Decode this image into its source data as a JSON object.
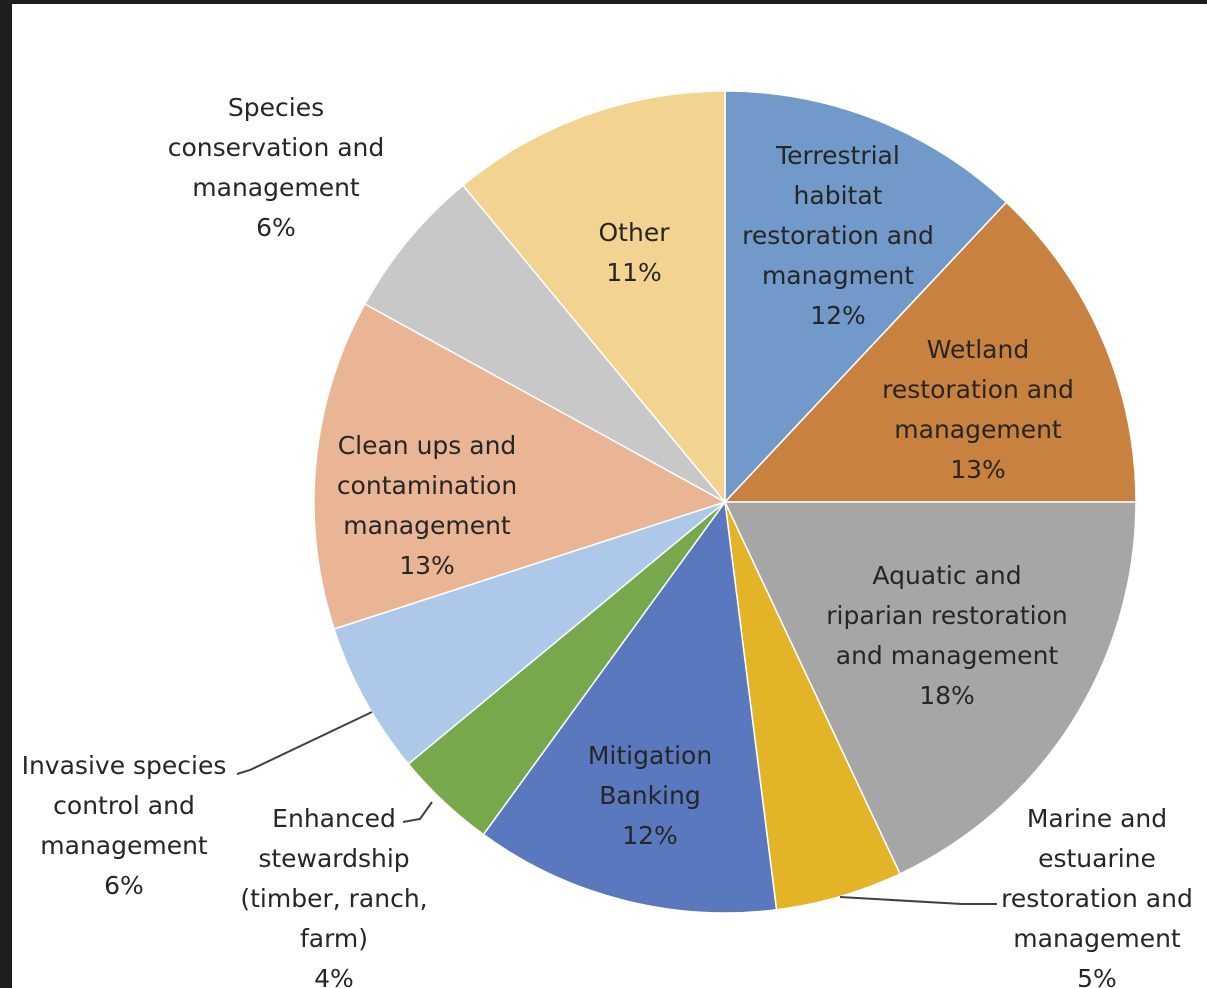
{
  "chart_data": {
    "type": "pie",
    "title": "",
    "slices": [
      {
        "label": "Terrestrial habitat restoration and managment",
        "pct_label": "12%",
        "value": 12,
        "color": "#7199c9"
      },
      {
        "label": "Wetland restoration and management",
        "pct_label": "13%",
        "value": 13,
        "color": "#c9813f"
      },
      {
        "label": "Aquatic and riparian restoration and management",
        "pct_label": "18%",
        "value": 18,
        "color": "#a6a6a6"
      },
      {
        "label": "Marine and estuarine restoration and management",
        "pct_label": "5%",
        "value": 5,
        "color": "#e3b427"
      },
      {
        "label": "Mitigation Banking",
        "pct_label": "12%",
        "value": 12,
        "color": "#5a78bd"
      },
      {
        "label": "Enhanced stewardship (timber, ranch, farm)",
        "pct_label": "4%",
        "value": 4,
        "color": "#78a84c"
      },
      {
        "label": "Invasive species control and management",
        "pct_label": "6%",
        "value": 6,
        "color": "#adc8e8"
      },
      {
        "label": "Clean ups and contamination management",
        "pct_label": "13%",
        "value": 13,
        "color": "#e9b595"
      },
      {
        "label": "Species conservation and management",
        "pct_label": "6%",
        "value": 6,
        "color": "#c8c8c8"
      },
      {
        "label": "Other",
        "pct_label": "11%",
        "value": 11,
        "color": "#f2d490"
      }
    ]
  },
  "labels": [
    {
      "lines": [
        "Terrestrial",
        "habitat",
        "restoration and",
        "managment",
        "12%"
      ]
    },
    {
      "lines": [
        "Wetland",
        "restoration and",
        "management",
        "13%"
      ]
    },
    {
      "lines": [
        "Aquatic and",
        "riparian restoration",
        "and management",
        "18%"
      ]
    },
    {
      "lines": [
        "Marine and",
        "estuarine",
        "restoration and",
        "management",
        "5%"
      ]
    },
    {
      "lines": [
        "Mitigation",
        "Banking",
        "12%"
      ]
    },
    {
      "lines": [
        "Enhanced",
        "stewardship",
        "(timber, ranch,",
        "farm)",
        "4%"
      ]
    },
    {
      "lines": [
        "Invasive species",
        "control and",
        "management",
        "6%"
      ]
    },
    {
      "lines": [
        "Clean ups and",
        "contamination",
        "management",
        "13%"
      ]
    },
    {
      "lines": [
        "Species",
        "conservation and",
        "management",
        "6%"
      ]
    },
    {
      "lines": [
        "Other",
        "11%"
      ]
    }
  ]
}
